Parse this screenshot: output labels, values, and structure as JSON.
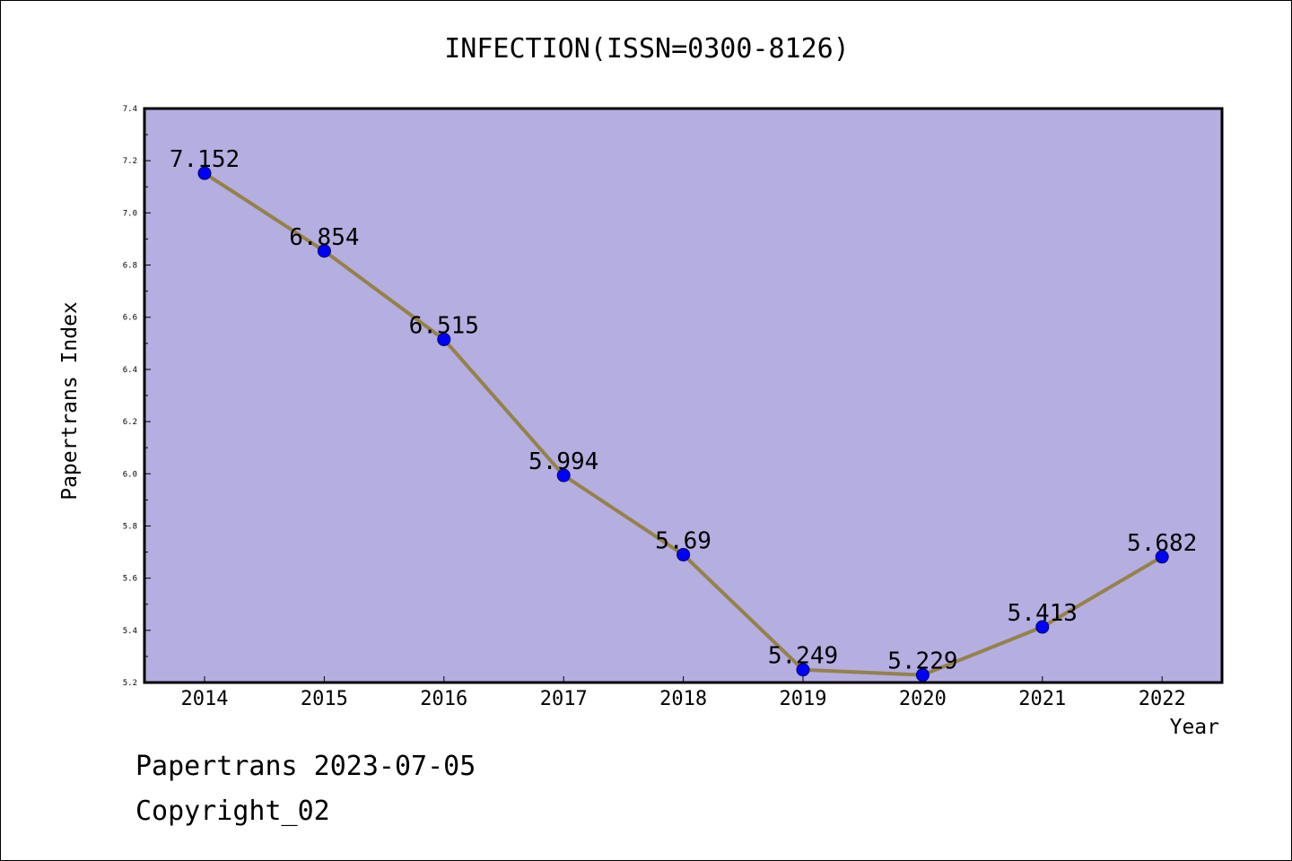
{
  "title": "INFECTION(ISSN=0300-8126)",
  "footer": {
    "date_line": "Papertrans 2023-07-05",
    "copyright": "Copyright_02"
  },
  "colors": {
    "plot_background": "#b4aee1",
    "line": "#948248",
    "marker": "#0000ff",
    "frame": "#000000"
  },
  "chart_data": {
    "type": "line",
    "title": "INFECTION(ISSN=0300-8126)",
    "xlabel": "Year",
    "ylabel": "Papertrans Index",
    "categories": [
      "2014",
      "2015",
      "2016",
      "2017",
      "2018",
      "2019",
      "2020",
      "2021",
      "2022"
    ],
    "series": [
      {
        "values": [
          7.152,
          6.854,
          6.515,
          5.994,
          5.69,
          5.249,
          5.229,
          5.413,
          5.682
        ],
        "data_labels": [
          "7.152",
          "6.854",
          "6.515",
          "5.994",
          "5.69",
          "5.249",
          "5.229",
          "5.413",
          "5.682"
        ]
      }
    ],
    "ylim": [
      5.2,
      7.4
    ],
    "yticks": [
      "5.2",
      "5.4",
      "5.6",
      "5.8",
      "6.0",
      "6.2",
      "6.4",
      "6.6",
      "6.8",
      "7.0",
      "7.2",
      "7.4"
    ],
    "grid": false,
    "legend": "none"
  }
}
